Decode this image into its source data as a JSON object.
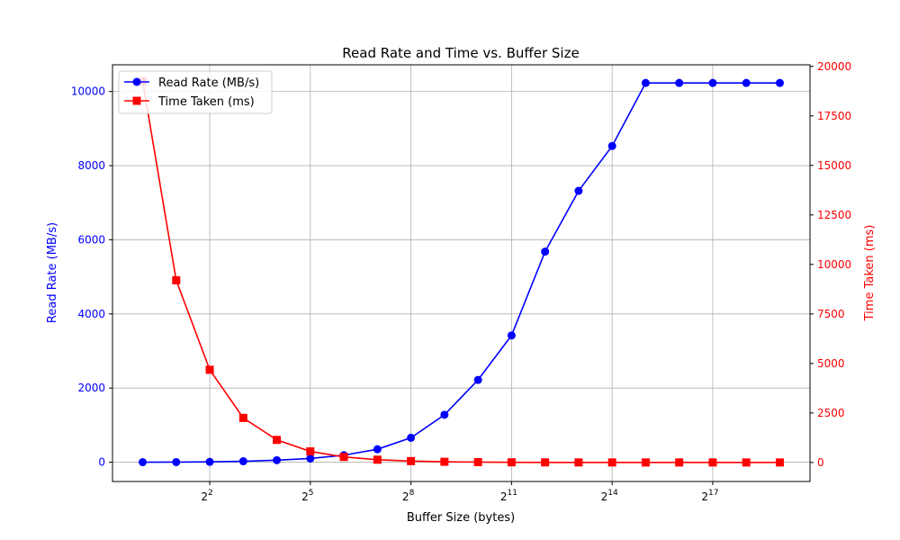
{
  "chart_data": {
    "type": "line",
    "title": "Read Rate and Time vs. Buffer Size",
    "xlabel": "Buffer Size (bytes)",
    "ylabel_left": "Read Rate (MB/s)",
    "ylabel_right": "Time Taken (ms)",
    "x_scale": "log2",
    "x_exponents": [
      0,
      1,
      2,
      3,
      4,
      5,
      6,
      7,
      8,
      9,
      10,
      11,
      12,
      13,
      14,
      15,
      16,
      17,
      18,
      19
    ],
    "x_tick_exponents": [
      2,
      5,
      8,
      11,
      14,
      17
    ],
    "x_tick_base": "2",
    "xlim_exponent": [
      -0.9,
      19.9
    ],
    "ylim_left": [
      -520,
      10720
    ],
    "ylim_right": [
      -960,
      20080
    ],
    "y_ticks_left": [
      0,
      2000,
      4000,
      6000,
      8000,
      10000
    ],
    "y_ticks_right": [
      0,
      2500,
      5000,
      7500,
      10000,
      12500,
      15000,
      17500,
      20000
    ],
    "grid": true,
    "legend_position": "top-left",
    "series": [
      {
        "name": "Read Rate (MB/s)",
        "axis": "left",
        "color": "#0000ff",
        "marker": "circle",
        "values": [
          1,
          3,
          10,
          25,
          55,
          100,
          190,
          350,
          660,
          1280,
          2220,
          3420,
          5680,
          7320,
          8530,
          10230,
          10230,
          10230,
          10230,
          10230
        ]
      },
      {
        "name": "Time Taken (ms)",
        "axis": "right",
        "color": "#ff0000",
        "marker": "square",
        "values": [
          19250,
          9200,
          4680,
          2250,
          1140,
          560,
          280,
          140,
          70,
          35,
          18,
          9,
          5,
          2,
          1,
          1,
          1,
          1,
          1,
          1
        ]
      }
    ]
  }
}
